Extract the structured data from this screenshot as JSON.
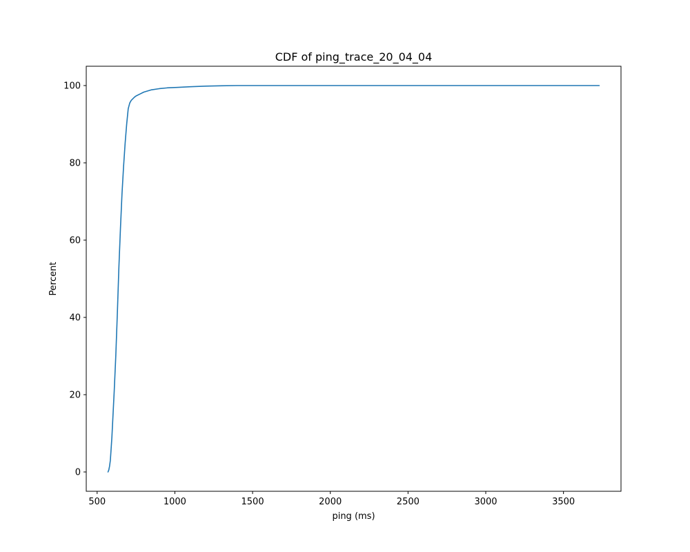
{
  "chart_data": {
    "type": "line",
    "title": "CDF of ping_trace_20_04_04",
    "xlabel": "ping (ms)",
    "ylabel": "Percent",
    "xlim": [
      430,
      3870
    ],
    "ylim": [
      -5,
      105
    ],
    "xticks": [
      500,
      1000,
      1500,
      2000,
      2500,
      3000,
      3500
    ],
    "yticks": [
      0,
      20,
      40,
      60,
      80,
      100
    ],
    "grid": false,
    "line_color": "#1f77b4",
    "series": [
      {
        "x": [
          570,
          575,
          580,
          585,
          590,
          595,
          600,
          610,
          620,
          630,
          640,
          650,
          660,
          670,
          680,
          690,
          700,
          710,
          720,
          730,
          740,
          750,
          775,
          800,
          850,
          900,
          950,
          1000,
          1100,
          1200,
          1300,
          1400,
          1500,
          2000,
          2500,
          3000,
          3500,
          3730
        ],
        "y": [
          0,
          0.5,
          1.5,
          3,
          6,
          9,
          13,
          21,
          30,
          41,
          53,
          63,
          72,
          79,
          85,
          90,
          94,
          95.5,
          96.2,
          96.6,
          97,
          97.3,
          97.8,
          98.3,
          98.9,
          99.2,
          99.4,
          99.5,
          99.7,
          99.85,
          99.95,
          100,
          100,
          100,
          100,
          100,
          100,
          100
        ]
      }
    ]
  }
}
